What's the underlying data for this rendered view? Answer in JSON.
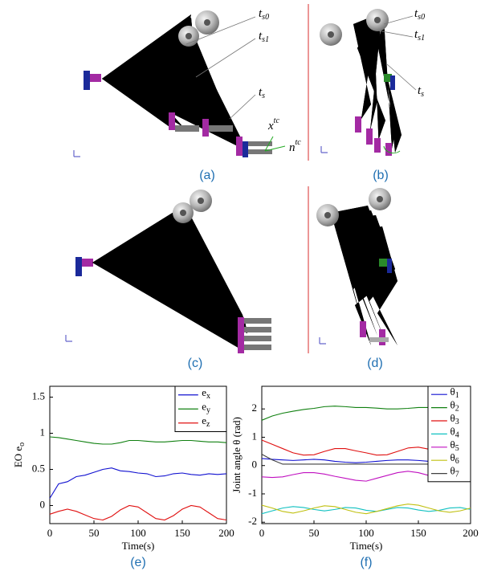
{
  "figure": {
    "panels": [
      {
        "caption": "(a)",
        "labels": [
          "ts0",
          "ts1",
          "ts",
          "xtc",
          "ntc"
        ]
      },
      {
        "caption": "(b)",
        "labels": [
          "ts0",
          "ts1",
          "ts"
        ]
      },
      {
        "caption": "(c)"
      },
      {
        "caption": "(d)"
      }
    ]
  },
  "chart_data": [
    {
      "type": "line",
      "caption": "(e)",
      "xlabel": "Time(s)",
      "ylabel": "EO eo",
      "x": [
        0,
        10,
        20,
        30,
        40,
        50,
        60,
        70,
        80,
        90,
        100,
        110,
        120,
        130,
        140,
        150,
        160,
        170,
        180,
        190,
        200
      ],
      "xlim": [
        0,
        200
      ],
      "xticks": [
        0,
        50,
        100,
        150,
        200
      ],
      "ylim": [
        -0.25,
        1.65
      ],
      "yticks": [
        0,
        0.5,
        1,
        1.5
      ],
      "series": [
        {
          "name": "ex",
          "color": "#1010d0",
          "values": [
            0.1,
            0.3,
            0.33,
            0.4,
            0.42,
            0.46,
            0.5,
            0.52,
            0.48,
            0.47,
            0.45,
            0.44,
            0.4,
            0.41,
            0.44,
            0.45,
            0.43,
            0.42,
            0.44,
            0.43,
            0.44
          ]
        },
        {
          "name": "ey",
          "color": "#108010",
          "values": [
            0.95,
            0.94,
            0.92,
            0.9,
            0.88,
            0.86,
            0.85,
            0.85,
            0.87,
            0.9,
            0.9,
            0.89,
            0.88,
            0.88,
            0.89,
            0.9,
            0.9,
            0.89,
            0.88,
            0.88,
            0.87
          ]
        },
        {
          "name": "ez",
          "color": "#e01010",
          "values": [
            -0.12,
            -0.08,
            -0.05,
            -0.08,
            -0.13,
            -0.18,
            -0.2,
            -0.15,
            -0.06,
            0,
            -0.02,
            -0.1,
            -0.18,
            -0.2,
            -0.14,
            -0.05,
            0,
            -0.02,
            -0.1,
            -0.18,
            -0.2
          ]
        }
      ]
    },
    {
      "type": "line",
      "caption": "(f)",
      "xlabel": "Time(s)",
      "ylabel": "Joint angle θ (rad)",
      "x": [
        0,
        10,
        20,
        30,
        40,
        50,
        60,
        70,
        80,
        90,
        100,
        110,
        120,
        130,
        140,
        150,
        160,
        170,
        180,
        190,
        200
      ],
      "xlim": [
        0,
        200
      ],
      "xticks": [
        0,
        50,
        100,
        150,
        200
      ],
      "ylim": [
        -2.05,
        2.8
      ],
      "yticks": [
        -2,
        -1,
        0,
        1,
        2
      ],
      "series": [
        {
          "name": "θ1",
          "color": "#1010d0",
          "values": [
            0.25,
            0.22,
            0.2,
            0.18,
            0.2,
            0.22,
            0.2,
            0.15,
            0.12,
            0.1,
            0.12,
            0.15,
            0.18,
            0.2,
            0.2,
            0.18,
            0.15,
            0.12,
            0.12,
            0.15,
            0.18
          ]
        },
        {
          "name": "θ2",
          "color": "#108010",
          "values": [
            1.6,
            1.75,
            1.85,
            1.92,
            1.98,
            2.02,
            2.08,
            2.1,
            2.08,
            2.05,
            2.05,
            2.03,
            2.0,
            2.0,
            2.02,
            2.05,
            2.05,
            2.03,
            2.02,
            2.0,
            2.0
          ]
        },
        {
          "name": "θ3",
          "color": "#e01010",
          "values": [
            0.9,
            0.75,
            0.6,
            0.45,
            0.37,
            0.38,
            0.5,
            0.6,
            0.6,
            0.52,
            0.45,
            0.37,
            0.38,
            0.5,
            0.62,
            0.65,
            0.58,
            0.5,
            0.45,
            0.5,
            0.6
          ]
        },
        {
          "name": "θ4",
          "color": "#10c0c0",
          "values": [
            -1.7,
            -1.6,
            -1.5,
            -1.45,
            -1.48,
            -1.55,
            -1.6,
            -1.55,
            -1.48,
            -1.5,
            -1.58,
            -1.62,
            -1.55,
            -1.48,
            -1.5,
            -1.57,
            -1.62,
            -1.58,
            -1.5,
            -1.48,
            -1.55
          ]
        },
        {
          "name": "θ5",
          "color": "#c010c0",
          "values": [
            -0.4,
            -0.42,
            -0.4,
            -0.32,
            -0.25,
            -0.25,
            -0.3,
            -0.38,
            -0.45,
            -0.52,
            -0.55,
            -0.45,
            -0.35,
            -0.25,
            -0.2,
            -0.25,
            -0.35,
            -0.45,
            -0.53,
            -0.55,
            -0.5
          ]
        },
        {
          "name": "θ6",
          "color": "#c0c010",
          "values": [
            -1.4,
            -1.5,
            -1.62,
            -1.68,
            -1.6,
            -1.5,
            -1.42,
            -1.45,
            -1.55,
            -1.65,
            -1.7,
            -1.62,
            -1.52,
            -1.42,
            -1.36,
            -1.4,
            -1.5,
            -1.6,
            -1.65,
            -1.6,
            -1.5
          ]
        },
        {
          "name": "θ7",
          "color": "#404040",
          "values": [
            0.4,
            0.2,
            0.05,
            0.05,
            0.05,
            0.05,
            0.05,
            0.05,
            0.05,
            0.05,
            0.05,
            0.05,
            0.05,
            0.05,
            0.05,
            0.05,
            0.05,
            0.05,
            0.05,
            0.05,
            0.05
          ]
        }
      ]
    }
  ]
}
